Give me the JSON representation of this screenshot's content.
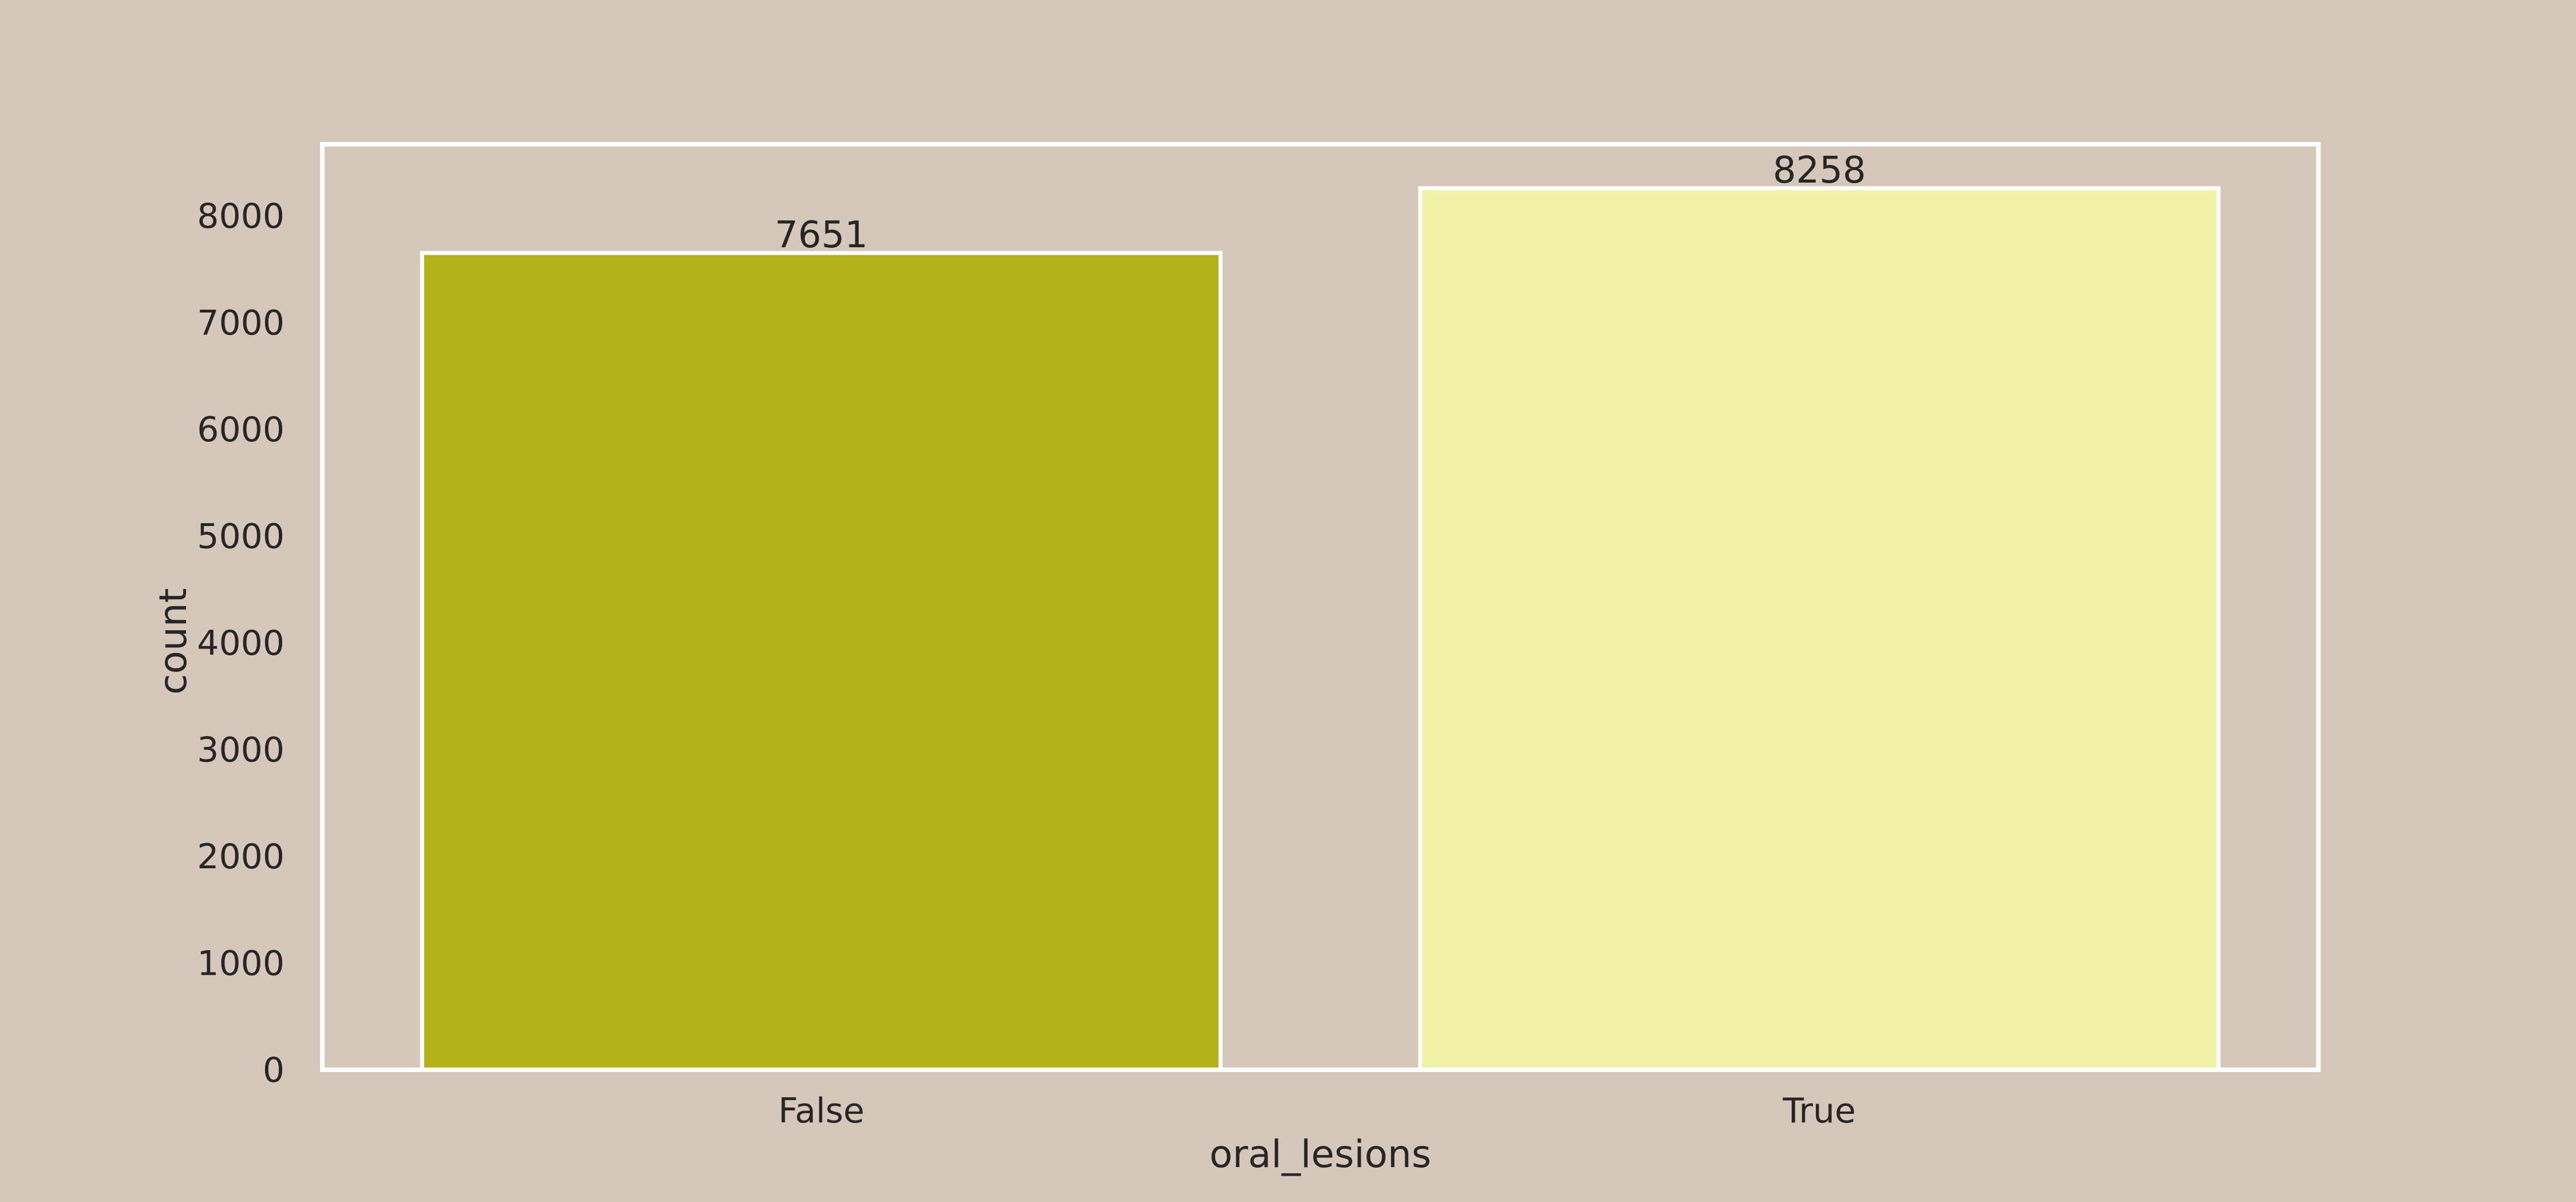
{
  "colors": {
    "background": "#d5c8bb",
    "axes_face": "#d5c8bb",
    "edge": "#ffffff",
    "text": "#262626"
  },
  "chart_data": {
    "type": "bar",
    "title": "",
    "xlabel": "oral_lesions",
    "ylabel": "count",
    "categories": [
      "False",
      "True"
    ],
    "values": [
      7651,
      8258
    ],
    "data_labels": [
      "7651",
      "8258"
    ],
    "bar_colors": [
      "#b4b11b",
      "#f0f1a6"
    ],
    "ylim": [
      0,
      8670
    ],
    "yticks": [
      0,
      1000,
      2000,
      3000,
      4000,
      5000,
      6000,
      7000,
      8000
    ],
    "ytick_labels": [
      "0",
      "1000",
      "2000",
      "3000",
      "4000",
      "5000",
      "6000",
      "7000",
      "8000"
    ],
    "grid": false,
    "legend": "none"
  }
}
